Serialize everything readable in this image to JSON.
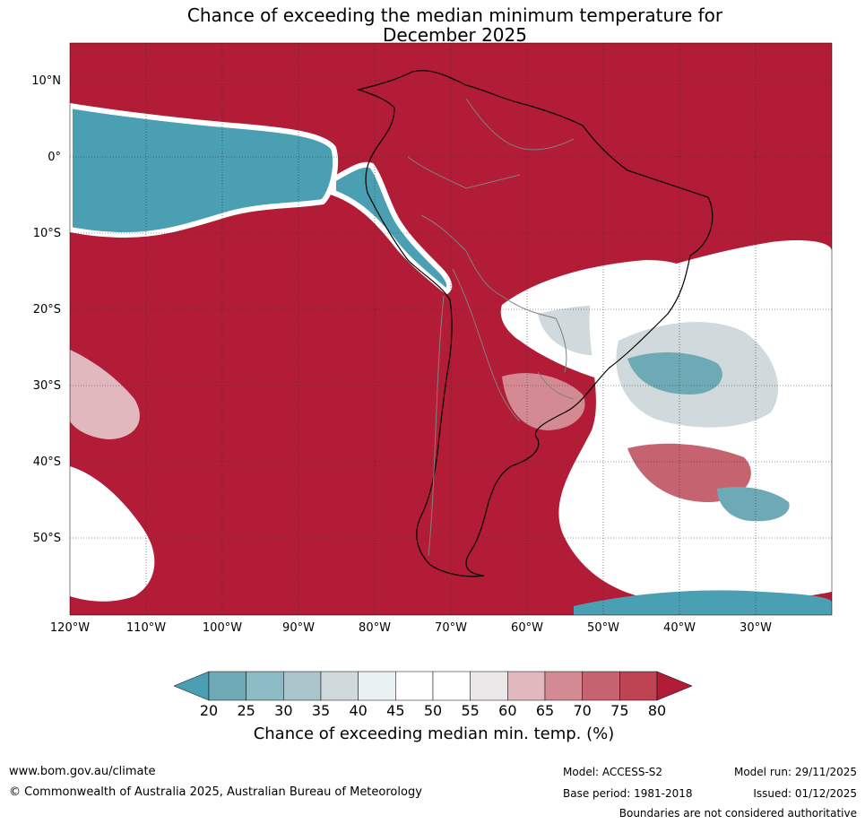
{
  "title_line1": "Chance of exceeding the median minimum temperature for",
  "title_line2": "December 2025",
  "latitude_labels": [
    "10°N",
    "0°",
    "10°S",
    "20°S",
    "30°S",
    "40°S",
    "50°S"
  ],
  "longitude_labels": [
    "120°W",
    "110°W",
    "100°W",
    "90°W",
    "80°W",
    "70°W",
    "60°W",
    "50°W",
    "40°W",
    "30°W"
  ],
  "colorbar": {
    "ticks": [
      "20",
      "25",
      "30",
      "35",
      "40",
      "45",
      "50",
      "55",
      "60",
      "65",
      "70",
      "75",
      "80"
    ],
    "colors": [
      "#4aa0b2",
      "#6eaab6",
      "#8cbac5",
      "#abc5cc",
      "#d0d9db",
      "#eaf1f3",
      "#ffffff",
      "#ffffff",
      "#ebe8ea",
      "#e1b8be",
      "#d48a93",
      "#c56470",
      "#bf4453",
      "#b21c36"
    ],
    "label": "Chance of exceeding median min. temp. (%)"
  },
  "map_colors": {
    "high": "#b21c36",
    "low": "#4aa0b2",
    "neutral": "#ffffff",
    "land_border": "#000000",
    "country_border": "#808080",
    "grid": "#333333"
  },
  "footer": {
    "website": "www.bom.gov.au/climate",
    "copyright": "© Commonwealth of Australia 2025, Australian Bureau of Meteorology",
    "model": "Model: ACCESS-S2",
    "base_period": "Base period: 1981-2018",
    "model_run": "Model run: 29/11/2025",
    "issued": "Issued: 01/12/2025",
    "boundaries": "Boundaries are not considered authoritative"
  }
}
